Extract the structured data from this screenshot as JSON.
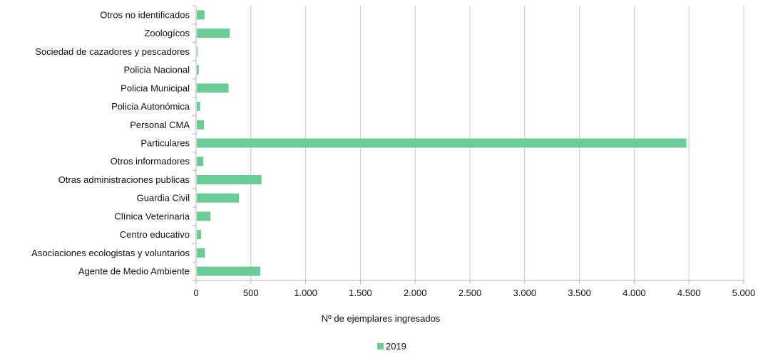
{
  "chart_data": {
    "type": "bar",
    "orientation": "horizontal",
    "xlabel": "Nº de ejemplares ingresados",
    "xlim": [
      0,
      5000
    ],
    "x_ticks": [
      0,
      500,
      1000,
      1500,
      2000,
      2500,
      3000,
      3500,
      4000,
      4500,
      5000
    ],
    "x_tick_labels": [
      "0",
      "500",
      "1.000",
      "1.500",
      "2.000",
      "2.500",
      "3.000",
      "3.500",
      "4.000",
      "4.500",
      "5.000"
    ],
    "grid": true,
    "legend_position": "bottom",
    "bar_color": "#6DCB98",
    "categories": [
      "Otros no identificados",
      "Zoologícos",
      "Sociedad de cazadores y pescadores",
      "Policia Nacional",
      "Policia Municipal",
      "Policia Autonómica",
      "Personal CMA",
      "Particulares",
      "Otros informadores",
      "Otras administraciones publicas",
      "Guardia Civil",
      "Clínica Veterinaria",
      "Centro educativo",
      "Asociaciones ecologistas y voluntarios",
      "Agente de Medio Ambiente"
    ],
    "series": [
      {
        "name": "2019",
        "values": [
          70,
          300,
          8,
          18,
          290,
          30,
          65,
          4470,
          60,
          590,
          385,
          125,
          40,
          75,
          580
        ]
      }
    ]
  }
}
